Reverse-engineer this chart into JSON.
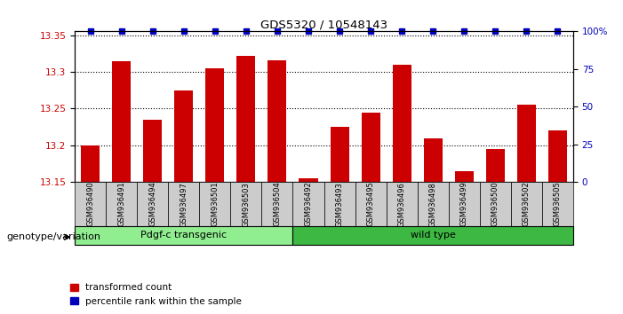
{
  "title": "GDS5320 / 10548143",
  "samples": [
    "GSM936490",
    "GSM936491",
    "GSM936494",
    "GSM936497",
    "GSM936501",
    "GSM936503",
    "GSM936504",
    "GSM936492",
    "GSM936493",
    "GSM936495",
    "GSM936496",
    "GSM936498",
    "GSM936499",
    "GSM936500",
    "GSM936502",
    "GSM936505"
  ],
  "red_values": [
    13.2,
    13.315,
    13.235,
    13.275,
    13.305,
    13.322,
    13.316,
    13.155,
    13.225,
    13.245,
    13.31,
    13.21,
    13.165,
    13.195,
    13.255,
    13.22
  ],
  "blue_values": [
    100,
    100,
    100,
    100,
    100,
    100,
    100,
    100,
    100,
    100,
    100,
    100,
    100,
    100,
    100,
    100
  ],
  "ylim_left": [
    13.15,
    13.355
  ],
  "ylim_right": [
    0,
    100
  ],
  "yticks_left": [
    13.15,
    13.2,
    13.25,
    13.3,
    13.35
  ],
  "yticks_right": [
    0,
    25,
    50,
    75,
    100
  ],
  "group1_label": "Pdgf-c transgenic",
  "group2_label": "wild type",
  "group1_count": 7,
  "group2_count": 9,
  "group1_color": "#90EE90",
  "group2_color": "#3CB843",
  "bar_color_red": "#CC0000",
  "bar_color_blue": "#0000BB",
  "legend_red": "transformed count",
  "legend_blue": "percentile rank within the sample",
  "genotype_label": "genotype/variation",
  "bar_width": 0.6,
  "background_color": "#ffffff",
  "tick_bg_color": "#cccccc"
}
